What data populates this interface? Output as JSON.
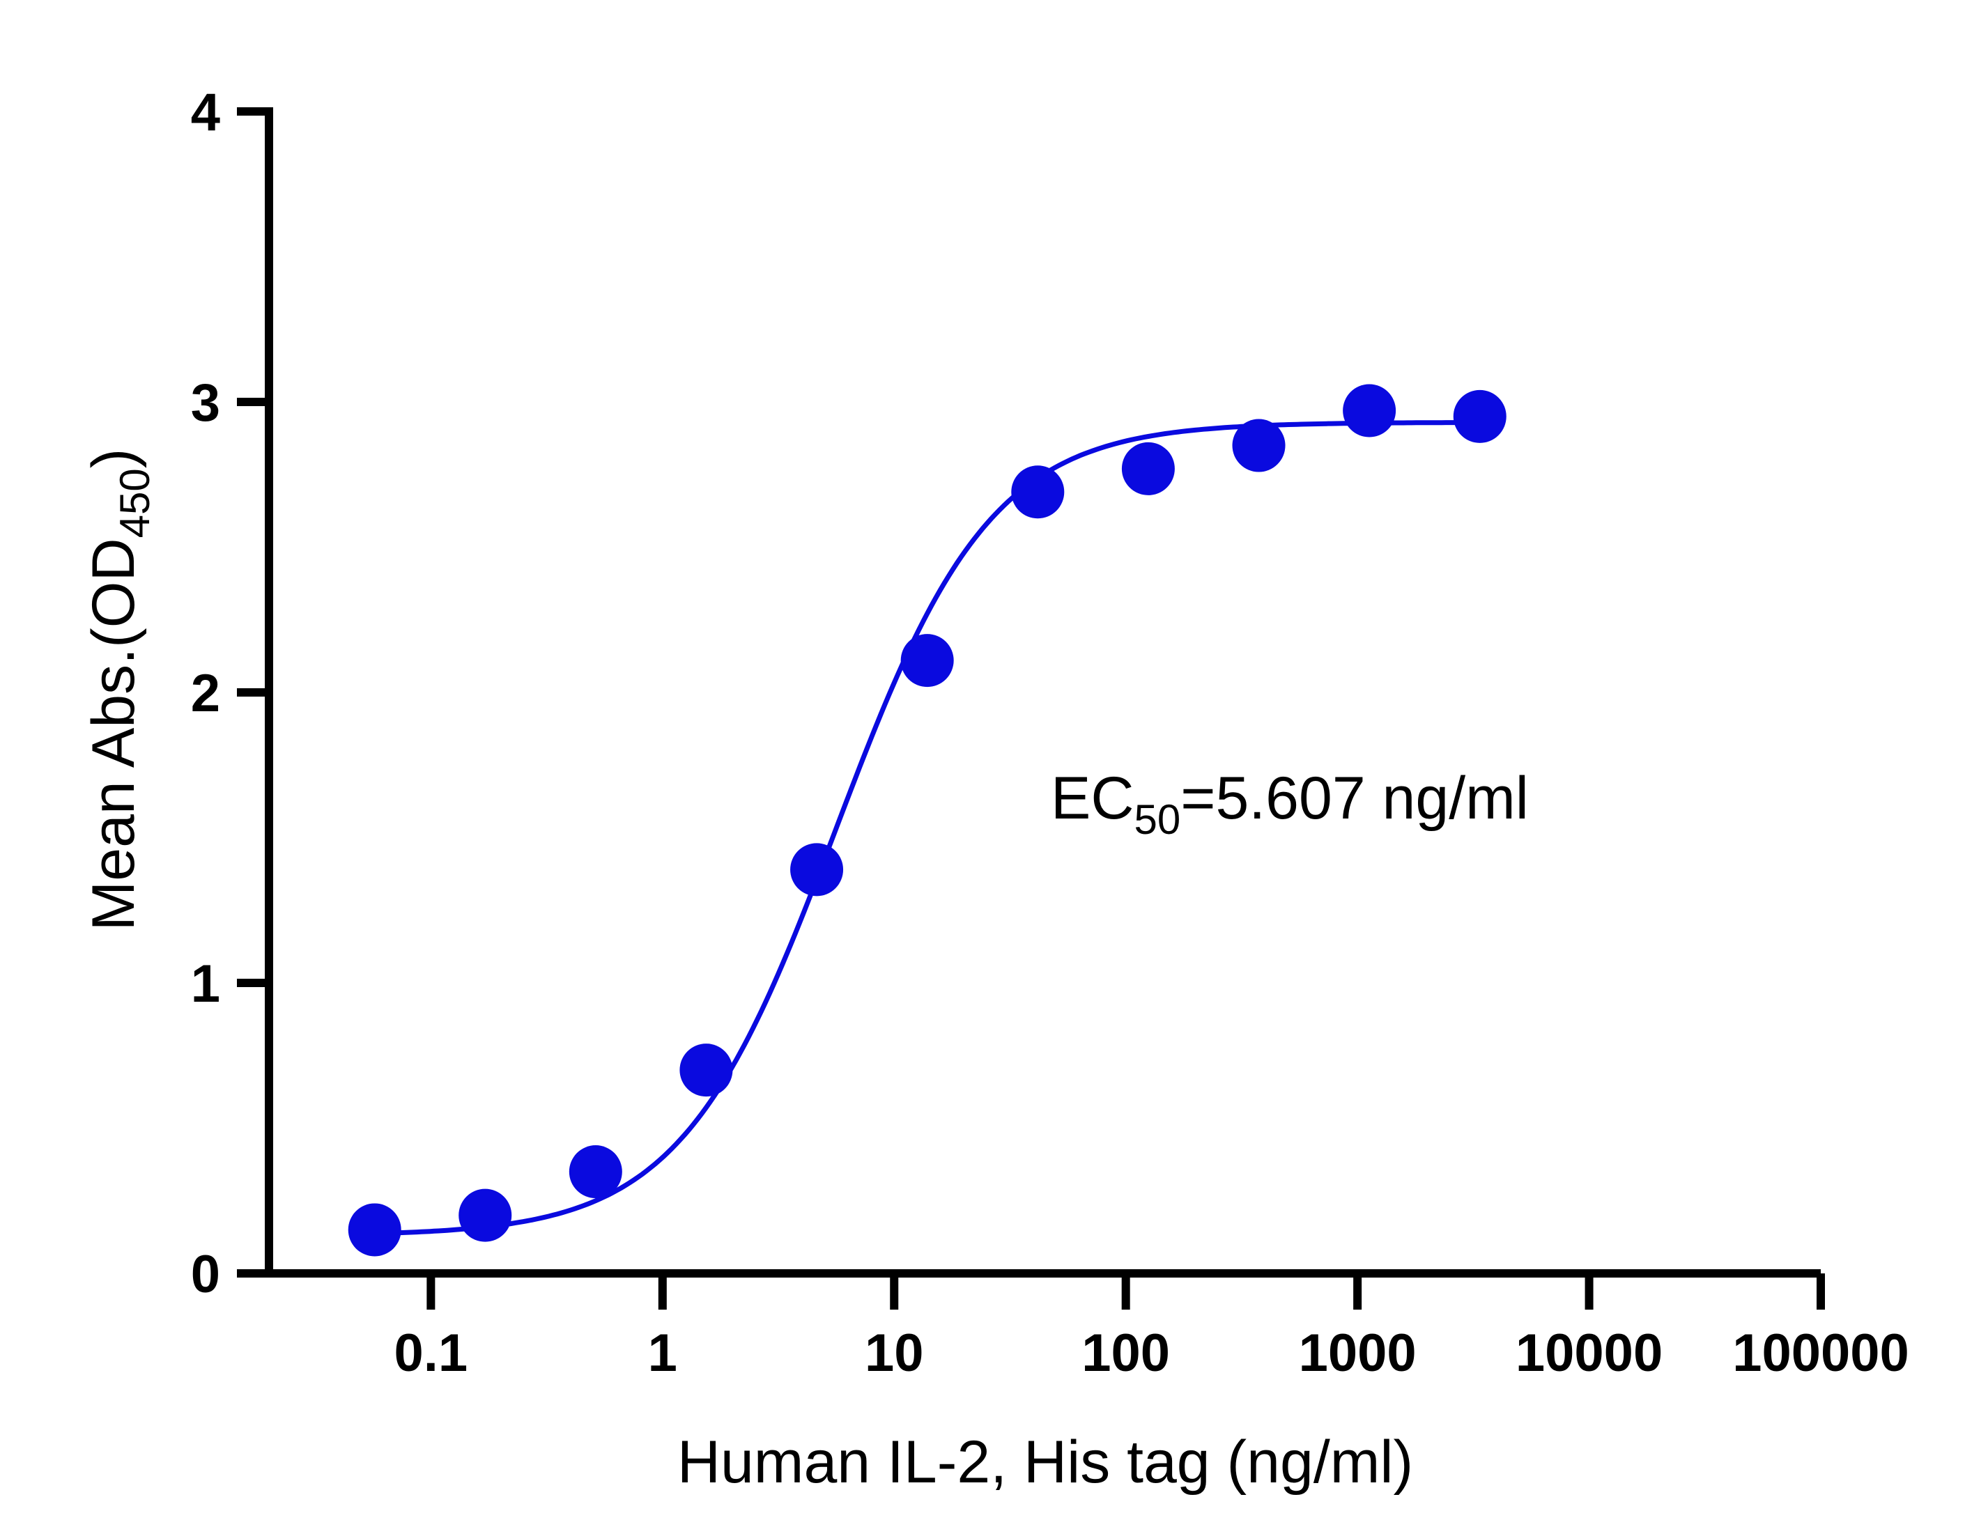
{
  "chart_data": {
    "type": "scatter",
    "title": "",
    "xlabel": "Human IL-2, His tag (ng/ml)",
    "ylabel_main": "Mean Abs.(OD",
    "ylabel_sub": "450",
    "ylabel_close": ")",
    "x_scale": "log",
    "xlim": [
      0.02,
      100000
    ],
    "ylim": [
      0,
      4
    ],
    "x_ticks": [
      0.1,
      1,
      10,
      100,
      1000,
      10000,
      100000
    ],
    "x_tick_labels": [
      "0.1",
      "1",
      "10",
      "100",
      "1000",
      "10000",
      "100000"
    ],
    "y_ticks": [
      0,
      1,
      2,
      3,
      4
    ],
    "y_tick_labels": [
      "0",
      "1",
      "2",
      "3",
      "4"
    ],
    "grid": false,
    "series": [
      {
        "x": [
          0.0572,
          0.1715,
          0.5144,
          1.543,
          4.63,
          13.89,
          41.67,
          125.0,
          375.0,
          1125,
          3375
        ],
        "y": [
          0.15,
          0.2,
          0.35,
          0.7,
          1.39,
          2.11,
          2.69,
          2.77,
          2.85,
          2.97,
          2.95
        ],
        "color": "#0a0adf"
      }
    ],
    "fit_curve": {
      "model": "4PL",
      "bottom": 0.13,
      "top": 2.93,
      "ec50": 5.607,
      "hill": 1.3,
      "color": "#0a0adf"
    },
    "annotation": {
      "prefix": "EC",
      "subscript": "50",
      "suffix": "=5.607 ng/ml"
    }
  }
}
